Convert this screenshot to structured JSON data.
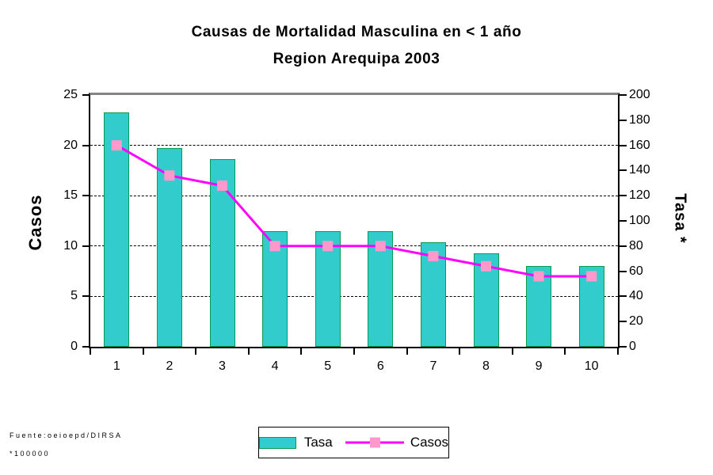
{
  "chart_data": {
    "type": "bar+line combo",
    "title": "Causas de Mortalidad Masculina en < 1 año",
    "subtitle": "Region Arequipa 2003",
    "categories": [
      "1",
      "2",
      "3",
      "4",
      "5",
      "6",
      "7",
      "8",
      "9",
      "10"
    ],
    "series": [
      {
        "name": "Tasa",
        "type": "bar",
        "axis": "right",
        "values": [
          186,
          158,
          149,
          92,
          92,
          92,
          83,
          74,
          64,
          64
        ]
      },
      {
        "name": "Casos",
        "type": "line",
        "axis": "left",
        "values": [
          20,
          17,
          16,
          10,
          10,
          10,
          9,
          8,
          7,
          7
        ]
      }
    ],
    "left_axis": {
      "label": "Casos",
      "range": [
        0,
        25
      ],
      "tick_step": 5,
      "ticks": [
        "0",
        "5",
        "10",
        "15",
        "20",
        "25"
      ]
    },
    "right_axis": {
      "label": "Tasa *",
      "range": [
        0,
        200
      ],
      "tick_step": 20,
      "ticks": [
        "0",
        "20",
        "40",
        "60",
        "80",
        "100",
        "120",
        "140",
        "160",
        "180",
        "200"
      ]
    },
    "grid": "horizontal dashed at left-axis values 5,10,15,20",
    "legend_position": "bottom-center",
    "legend_entries": [
      "Tasa",
      "Casos"
    ]
  },
  "footer": {
    "line1": "Fuente:oeioepd/DIRSA",
    "line2": "*100000"
  },
  "colors": {
    "bar_fill": "#33CCCC",
    "bar_border": "#0a9a50",
    "line": "#FF00FF",
    "marker": "#FF99CC",
    "plot_border_top": "#848484",
    "axis": "#000000"
  }
}
